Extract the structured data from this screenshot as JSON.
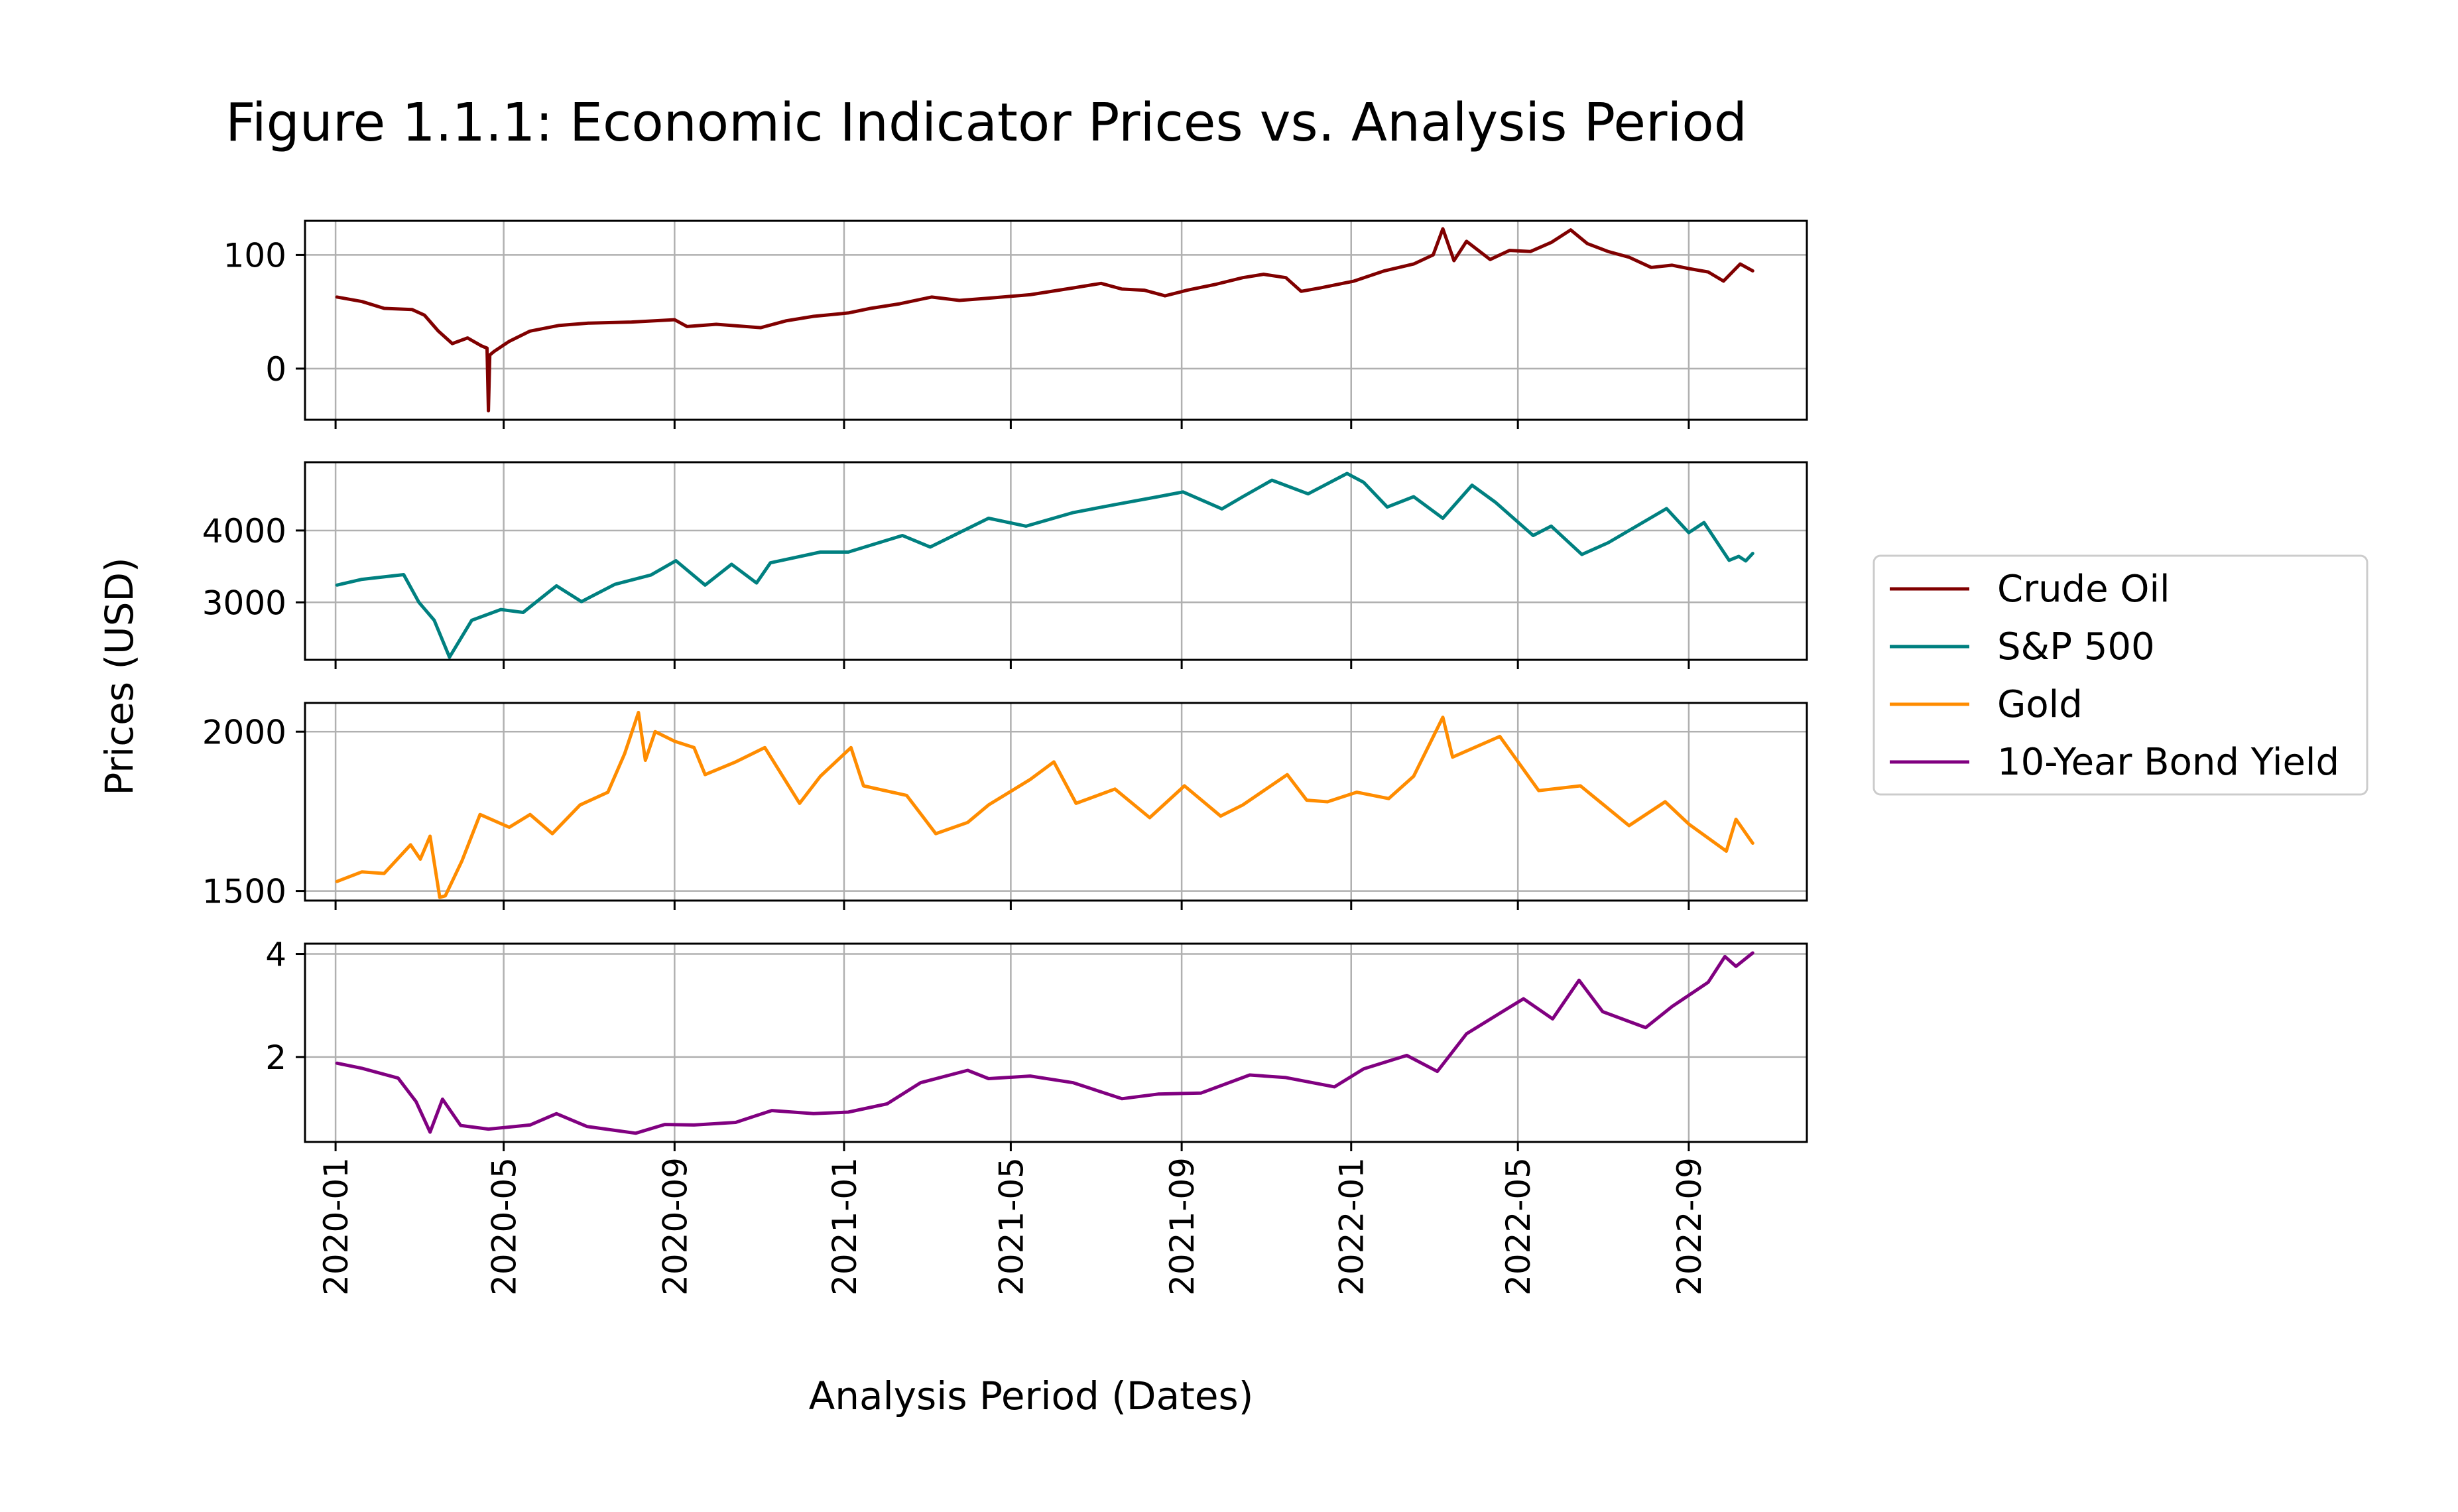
{
  "chart_data": {
    "type": "line",
    "title": "Figure 1.1.1: Economic Indicator Prices vs. Analysis Period",
    "xlabel": "Analysis Period (Dates)",
    "ylabel": "Prices (USD)",
    "x_ticks": [
      "2020-01",
      "2020-05",
      "2020-09",
      "2021-01",
      "2021-05",
      "2021-09",
      "2022-01",
      "2022-05",
      "2022-09"
    ],
    "xlim": [
      "2019-12-10",
      "2022-11-25"
    ],
    "grid": true,
    "legend": {
      "placement": "right",
      "entries": [
        "Crude Oil",
        "S&P 500",
        "Gold",
        "10-Year Bond Yield"
      ]
    },
    "series": [
      {
        "name": "Crude Oil",
        "color": "#800000",
        "ylim": [
          -45,
          130
        ],
        "yticks": [
          0,
          100
        ],
        "points": [
          [
            "2020-01-02",
            63
          ],
          [
            "2020-01-20",
            59
          ],
          [
            "2020-02-05",
            53
          ],
          [
            "2020-02-25",
            52
          ],
          [
            "2020-03-05",
            47
          ],
          [
            "2020-03-15",
            33
          ],
          [
            "2020-03-25",
            22
          ],
          [
            "2020-04-05",
            27
          ],
          [
            "2020-04-15",
            20
          ],
          [
            "2020-04-19",
            18
          ],
          [
            "2020-04-20",
            -37
          ],
          [
            "2020-04-21",
            12
          ],
          [
            "2020-04-24",
            15
          ],
          [
            "2020-05-05",
            24
          ],
          [
            "2020-05-20",
            33
          ],
          [
            "2020-06-10",
            38
          ],
          [
            "2020-07-01",
            40
          ],
          [
            "2020-08-01",
            41
          ],
          [
            "2020-09-01",
            43
          ],
          [
            "2020-09-10",
            37
          ],
          [
            "2020-10-01",
            39
          ],
          [
            "2020-11-02",
            36
          ],
          [
            "2020-11-20",
            42
          ],
          [
            "2020-12-10",
            46
          ],
          [
            "2021-01-04",
            49
          ],
          [
            "2021-01-20",
            53
          ],
          [
            "2021-02-10",
            57
          ],
          [
            "2021-03-05",
            63
          ],
          [
            "2021-03-25",
            60
          ],
          [
            "2021-04-15",
            62
          ],
          [
            "2021-05-15",
            65
          ],
          [
            "2021-06-15",
            71
          ],
          [
            "2021-07-05",
            75
          ],
          [
            "2021-07-20",
            70
          ],
          [
            "2021-08-05",
            69
          ],
          [
            "2021-08-20",
            64
          ],
          [
            "2021-09-05",
            69
          ],
          [
            "2021-09-25",
            74
          ],
          [
            "2021-10-15",
            80
          ],
          [
            "2021-10-30",
            83
          ],
          [
            "2021-11-15",
            80
          ],
          [
            "2021-11-26",
            68
          ],
          [
            "2021-12-10",
            71
          ],
          [
            "2022-01-03",
            77
          ],
          [
            "2022-01-25",
            86
          ],
          [
            "2022-02-15",
            92
          ],
          [
            "2022-03-01",
            100
          ],
          [
            "2022-03-08",
            123
          ],
          [
            "2022-03-16",
            95
          ],
          [
            "2022-03-25",
            112
          ],
          [
            "2022-04-11",
            96
          ],
          [
            "2022-04-25",
            104
          ],
          [
            "2022-05-10",
            103
          ],
          [
            "2022-05-25",
            111
          ],
          [
            "2022-06-08",
            122
          ],
          [
            "2022-06-20",
            110
          ],
          [
            "2022-07-05",
            103
          ],
          [
            "2022-07-20",
            98
          ],
          [
            "2022-08-05",
            89
          ],
          [
            "2022-08-20",
            91
          ],
          [
            "2022-09-01",
            88
          ],
          [
            "2022-09-15",
            85
          ],
          [
            "2022-09-26",
            77
          ],
          [
            "2022-10-08",
            92
          ],
          [
            "2022-10-17",
            86
          ]
        ]
      },
      {
        "name": "S&P 500",
        "color": "#008080",
        "ylim": [
          2200,
          4950
        ],
        "yticks": [
          3000,
          4000
        ],
        "points": [
          [
            "2020-01-02",
            3240
          ],
          [
            "2020-01-20",
            3320
          ],
          [
            "2020-02-19",
            3386
          ],
          [
            "2020-03-01",
            3000
          ],
          [
            "2020-03-12",
            2750
          ],
          [
            "2020-03-23",
            2237
          ],
          [
            "2020-04-08",
            2750
          ],
          [
            "2020-04-29",
            2900
          ],
          [
            "2020-05-15",
            2860
          ],
          [
            "2020-06-08",
            3230
          ],
          [
            "2020-06-26",
            3010
          ],
          [
            "2020-07-20",
            3250
          ],
          [
            "2020-08-15",
            3380
          ],
          [
            "2020-09-02",
            3580
          ],
          [
            "2020-09-23",
            3240
          ],
          [
            "2020-10-12",
            3530
          ],
          [
            "2020-10-30",
            3270
          ],
          [
            "2020-11-09",
            3550
          ],
          [
            "2020-12-15",
            3700
          ],
          [
            "2021-01-04",
            3700
          ],
          [
            "2021-02-12",
            3930
          ],
          [
            "2021-03-04",
            3770
          ],
          [
            "2021-04-15",
            4170
          ],
          [
            "2021-05-12",
            4060
          ],
          [
            "2021-06-15",
            4250
          ],
          [
            "2021-07-15",
            4360
          ],
          [
            "2021-08-15",
            4470
          ],
          [
            "2021-09-02",
            4537
          ],
          [
            "2021-09-30",
            4300
          ],
          [
            "2021-10-15",
            4470
          ],
          [
            "2021-11-05",
            4700
          ],
          [
            "2021-12-01",
            4510
          ],
          [
            "2021-12-29",
            4793
          ],
          [
            "2022-01-10",
            4670
          ],
          [
            "2022-01-27",
            4326
          ],
          [
            "2022-02-15",
            4470
          ],
          [
            "2022-03-08",
            4170
          ],
          [
            "2022-03-29",
            4630
          ],
          [
            "2022-04-15",
            4390
          ],
          [
            "2022-05-12",
            3930
          ],
          [
            "2022-05-25",
            4060
          ],
          [
            "2022-06-16",
            3666
          ],
          [
            "2022-07-05",
            3830
          ],
          [
            "2022-08-16",
            4305
          ],
          [
            "2022-09-01",
            3970
          ],
          [
            "2022-09-12",
            4110
          ],
          [
            "2022-09-30",
            3585
          ],
          [
            "2022-10-07",
            3640
          ],
          [
            "2022-10-12",
            3577
          ],
          [
            "2022-10-17",
            3680
          ]
        ]
      },
      {
        "name": "Gold",
        "color": "#ff8c00",
        "ylim": [
          1470,
          2090
        ],
        "yticks": [
          1500,
          2000
        ],
        "points": [
          [
            "2020-01-02",
            1530
          ],
          [
            "2020-01-20",
            1560
          ],
          [
            "2020-02-05",
            1555
          ],
          [
            "2020-02-24",
            1645
          ],
          [
            "2020-03-02",
            1600
          ],
          [
            "2020-03-09",
            1672
          ],
          [
            "2020-03-16",
            1480
          ],
          [
            "2020-03-20",
            1485
          ],
          [
            "2020-04-01",
            1595
          ],
          [
            "2020-04-14",
            1740
          ],
          [
            "2020-05-05",
            1700
          ],
          [
            "2020-05-20",
            1740
          ],
          [
            "2020-06-05",
            1680
          ],
          [
            "2020-06-25",
            1770
          ],
          [
            "2020-07-15",
            1810
          ],
          [
            "2020-07-27",
            1930
          ],
          [
            "2020-08-06",
            2060
          ],
          [
            "2020-08-11",
            1910
          ],
          [
            "2020-08-18",
            2000
          ],
          [
            "2020-09-01",
            1970
          ],
          [
            "2020-09-15",
            1950
          ],
          [
            "2020-09-23",
            1865
          ],
          [
            "2020-10-15",
            1905
          ],
          [
            "2020-11-05",
            1950
          ],
          [
            "2020-11-30",
            1775
          ],
          [
            "2020-12-15",
            1860
          ],
          [
            "2021-01-06",
            1950
          ],
          [
            "2021-01-15",
            1830
          ],
          [
            "2021-02-15",
            1800
          ],
          [
            "2021-03-08",
            1680
          ],
          [
            "2021-03-31",
            1715
          ],
          [
            "2021-04-15",
            1770
          ],
          [
            "2021-05-15",
            1850
          ],
          [
            "2021-06-01",
            1905
          ],
          [
            "2021-06-17",
            1775
          ],
          [
            "2021-07-15",
            1820
          ],
          [
            "2021-08-09",
            1730
          ],
          [
            "2021-09-03",
            1830
          ],
          [
            "2021-09-29",
            1735
          ],
          [
            "2021-10-15",
            1770
          ],
          [
            "2021-11-16",
            1865
          ],
          [
            "2021-11-30",
            1785
          ],
          [
            "2021-12-15",
            1780
          ],
          [
            "2022-01-05",
            1810
          ],
          [
            "2022-01-28",
            1790
          ],
          [
            "2022-02-15",
            1860
          ],
          [
            "2022-03-08",
            2045
          ],
          [
            "2022-03-15",
            1920
          ],
          [
            "2022-04-18",
            1985
          ],
          [
            "2022-05-16",
            1815
          ],
          [
            "2022-06-15",
            1830
          ],
          [
            "2022-07-20",
            1705
          ],
          [
            "2022-08-15",
            1780
          ],
          [
            "2022-09-01",
            1710
          ],
          [
            "2022-09-28",
            1625
          ],
          [
            "2022-10-05",
            1725
          ],
          [
            "2022-10-17",
            1650
          ]
        ]
      },
      {
        "name": "10-Year Bond Yield",
        "color": "#800080",
        "ylim": [
          0.35,
          4.2
        ],
        "yticks": [
          2,
          4
        ],
        "points": [
          [
            "2020-01-02",
            1.88
          ],
          [
            "2020-01-20",
            1.78
          ],
          [
            "2020-02-15",
            1.59
          ],
          [
            "2020-02-28",
            1.13
          ],
          [
            "2020-03-09",
            0.54
          ],
          [
            "2020-03-18",
            1.18
          ],
          [
            "2020-03-31",
            0.67
          ],
          [
            "2020-04-20",
            0.6
          ],
          [
            "2020-05-20",
            0.68
          ],
          [
            "2020-06-08",
            0.9
          ],
          [
            "2020-06-30",
            0.65
          ],
          [
            "2020-08-04",
            0.52
          ],
          [
            "2020-08-25",
            0.69
          ],
          [
            "2020-09-15",
            0.68
          ],
          [
            "2020-10-15",
            0.73
          ],
          [
            "2020-11-10",
            0.96
          ],
          [
            "2020-12-10",
            0.9
          ],
          [
            "2021-01-04",
            0.93
          ],
          [
            "2021-02-01",
            1.09
          ],
          [
            "2021-02-25",
            1.5
          ],
          [
            "2021-03-31",
            1.74
          ],
          [
            "2021-04-15",
            1.58
          ],
          [
            "2021-05-15",
            1.63
          ],
          [
            "2021-06-15",
            1.5
          ],
          [
            "2021-07-20",
            1.19
          ],
          [
            "2021-08-15",
            1.28
          ],
          [
            "2021-09-15",
            1.3
          ],
          [
            "2021-10-20",
            1.65
          ],
          [
            "2021-11-15",
            1.6
          ],
          [
            "2021-12-20",
            1.42
          ],
          [
            "2022-01-10",
            1.77
          ],
          [
            "2022-02-10",
            2.03
          ],
          [
            "2022-03-04",
            1.72
          ],
          [
            "2022-03-25",
            2.45
          ],
          [
            "2022-04-15",
            2.8
          ],
          [
            "2022-05-05",
            3.13
          ],
          [
            "2022-05-26",
            2.74
          ],
          [
            "2022-06-14",
            3.49
          ],
          [
            "2022-07-01",
            2.88
          ],
          [
            "2022-08-01",
            2.57
          ],
          [
            "2022-08-20",
            2.98
          ],
          [
            "2022-09-15",
            3.45
          ],
          [
            "2022-09-27",
            3.95
          ],
          [
            "2022-10-05",
            3.76
          ],
          [
            "2022-10-17",
            4.02
          ]
        ]
      }
    ]
  }
}
